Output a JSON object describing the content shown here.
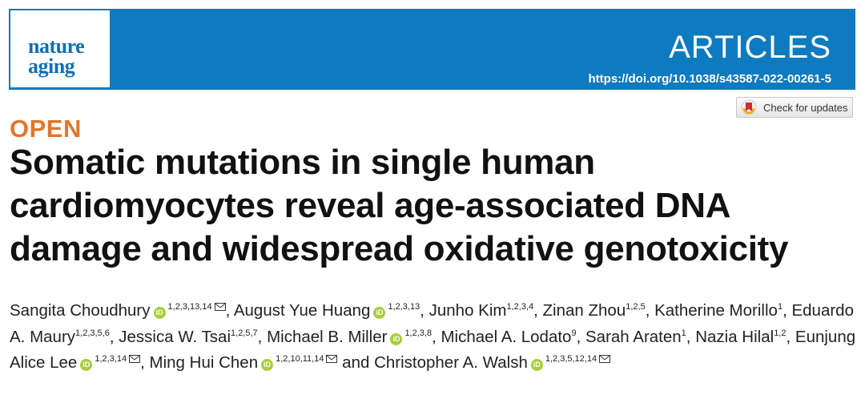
{
  "header": {
    "logo_line1": "nature",
    "logo_line2": "aging",
    "section": "ARTICLES",
    "doi": "https://doi.org/10.1038/s43587-022-00261-5",
    "banner_color": "#0e7ac0"
  },
  "check_updates": {
    "label": "Check for updates",
    "icon": "crossmark-icon"
  },
  "access_label": "OPEN",
  "title": "Somatic mutations in single human cardiomyocytes reveal age-associated DNA damage and widespread oxidative genotoxicity",
  "orcid_icon_text": "iD",
  "authors": [
    {
      "name": "Sangita Choudhury",
      "orcid": true,
      "aff": "1,2,3,13,14",
      "email": true,
      "sep": ", "
    },
    {
      "name": "August Yue Huang",
      "orcid": true,
      "aff": "1,2,3,13",
      "email": false,
      "sep": ", "
    },
    {
      "name": "Junho Kim",
      "orcid": false,
      "aff": "1,2,3,4",
      "email": false,
      "sep": ", "
    },
    {
      "name": "Zinan Zhou",
      "orcid": false,
      "aff": "1,2,5",
      "email": false,
      "sep": ", "
    },
    {
      "name": "Katherine Morillo",
      "orcid": false,
      "aff": "1",
      "email": false,
      "sep": ", "
    },
    {
      "name": "Eduardo A. Maury",
      "orcid": false,
      "aff": "1,2,3,5,6",
      "email": false,
      "sep": ", "
    },
    {
      "name": "Jessica W. Tsai",
      "orcid": false,
      "aff": "1,2,5,7",
      "email": false,
      "sep": ", "
    },
    {
      "name": "Michael B. Miller",
      "orcid": true,
      "aff": "1,2,3,8",
      "email": false,
      "sep": ", "
    },
    {
      "name": "Michael A. Lodato",
      "orcid": false,
      "aff": "9",
      "email": false,
      "sep": ", "
    },
    {
      "name": "Sarah Araten",
      "orcid": false,
      "aff": "1",
      "email": false,
      "sep": ", "
    },
    {
      "name": "Nazia Hilal",
      "orcid": false,
      "aff": "1,2",
      "email": false,
      "sep": ", "
    },
    {
      "name": "Eunjung Alice Lee",
      "orcid": true,
      "aff": "1,2,3,14",
      "email": true,
      "sep": ", "
    },
    {
      "name": "Ming Hui Chen",
      "orcid": true,
      "aff": "1,2,10,11,14",
      "email": true,
      "sep": " "
    },
    {
      "name": "and Christopher A. Walsh",
      "orcid": true,
      "aff": "1,2,3,5,12,14",
      "email": true,
      "sep": ""
    }
  ]
}
